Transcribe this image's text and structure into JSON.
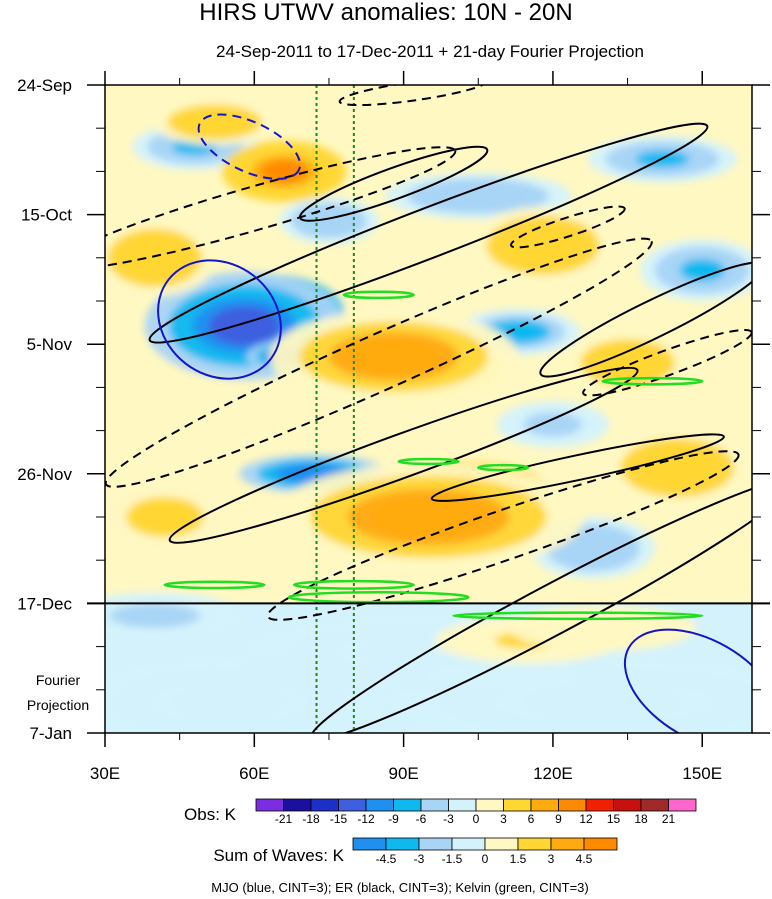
{
  "chart_data": {
    "type": "heatmap",
    "title": "HIRS UTWV anomalies: 10N - 20N",
    "subtitle": "24-Sep-2011 to 17-Dec-2011 + 21-day Fourier Projection",
    "x_ticks": [
      "30E",
      "60E",
      "90E",
      "120E",
      "150E"
    ],
    "x_tick_values": [
      30,
      60,
      90,
      120,
      150
    ],
    "xlim": [
      30,
      160
    ],
    "y_ticks": [
      "24-Sep",
      "15-Oct",
      "5-Nov",
      "26-Nov",
      "17-Dec",
      "7-Jan"
    ],
    "y_tick_days": [
      0,
      21,
      42,
      63,
      84,
      105
    ],
    "ylim_days": [
      0,
      105
    ],
    "projection_start_day": 84,
    "projection_label_1": "Fourier",
    "projection_label_2": "Projection",
    "reference_lines_lon": [
      72.5,
      80
    ],
    "obs_colorbar": {
      "title": "Obs: K",
      "levels": [
        "-21",
        "-18",
        "-15",
        "-12",
        "-9",
        "-6",
        "-3",
        "0",
        "3",
        "6",
        "9",
        "12",
        "15",
        "18",
        "21"
      ],
      "colors": [
        "#7b2de0",
        "#1a0f9e",
        "#1e2fc8",
        "#3e5fe0",
        "#1f8ff0",
        "#10b8f0",
        "#a8d4f5",
        "#d4f2fc",
        "#fff8c2",
        "#ffd633",
        "#ffaa10",
        "#ff8a00",
        "#f02000",
        "#c81010",
        "#a02a2a",
        "#ff66cc"
      ]
    },
    "waves_colorbar": {
      "title": "Sum of Waves: K",
      "levels": [
        "-4.5",
        "-3",
        "-1.5",
        "0",
        "1.5",
        "3",
        "4.5"
      ],
      "colors": [
        "#1f8ff0",
        "#10b8f0",
        "#a8d4f5",
        "#d4f2fc",
        "#fff8c2",
        "#ffd633",
        "#ffaa10",
        "#ff8a00"
      ]
    },
    "footnote": "MJO (blue, CINT=3); ER (black, CINT=3); Kelvin (green, CINT=3)",
    "field_patches": [
      {
        "lon": 63,
        "day": 37,
        "rlon": 12,
        "rday": 5,
        "val": -18
      },
      {
        "lon": 58,
        "day": 39,
        "rlon": 16,
        "rday": 7,
        "val": -13
      },
      {
        "lon": 66,
        "day": 44,
        "rlon": 6,
        "rday": 2,
        "val": -15
      },
      {
        "lon": 72,
        "day": 63,
        "rlon": 12,
        "rday": 2.5,
        "val": -12
      },
      {
        "lon": 48,
        "day": 10,
        "rlon": 10,
        "rday": 3,
        "val": -7
      },
      {
        "lon": 75,
        "day": 22,
        "rlon": 8,
        "rday": 3,
        "val": -6
      },
      {
        "lon": 105,
        "day": 18,
        "rlon": 15,
        "rday": 3,
        "val": -6
      },
      {
        "lon": 142,
        "day": 12,
        "rlon": 12,
        "rday": 3,
        "val": -7
      },
      {
        "lon": 113,
        "day": 40,
        "rlon": 10,
        "rday": 3,
        "val": -8
      },
      {
        "lon": 150,
        "day": 30,
        "rlon": 10,
        "rday": 4,
        "val": -7
      },
      {
        "lon": 128,
        "day": 75,
        "rlon": 10,
        "rday": 4,
        "val": -6
      },
      {
        "lon": 120,
        "day": 55,
        "rlon": 9,
        "rday": 3,
        "val": -5
      },
      {
        "lon": 40,
        "day": 86,
        "rlon": 14,
        "rday": 3,
        "val": -4
      },
      {
        "lon": 95,
        "day": 92,
        "rlon": 30,
        "rday": 5,
        "val": -2
      },
      {
        "lon": 130,
        "day": 100,
        "rlon": 35,
        "rday": 6,
        "val": -2
      },
      {
        "lon": 55,
        "day": 100,
        "rlon": 25,
        "rday": 6,
        "val": -2
      },
      {
        "lon": 66,
        "day": 14,
        "rlon": 10,
        "rday": 4,
        "val": 9
      },
      {
        "lon": 52,
        "day": 6,
        "rlon": 10,
        "rday": 3,
        "val": 5
      },
      {
        "lon": 92,
        "day": 46,
        "rlon": 14,
        "rday": 4,
        "val": 13
      },
      {
        "lon": 88,
        "day": 44,
        "rlon": 20,
        "rday": 6,
        "val": 8
      },
      {
        "lon": 102,
        "day": 66,
        "rlon": 14,
        "rday": 4,
        "val": 14
      },
      {
        "lon": 95,
        "day": 70,
        "rlon": 25,
        "rday": 7,
        "val": 8
      },
      {
        "lon": 118,
        "day": 26,
        "rlon": 12,
        "rday": 5,
        "val": 5
      },
      {
        "lon": 40,
        "day": 28,
        "rlon": 10,
        "rday": 5,
        "val": 5
      },
      {
        "lon": 135,
        "day": 45,
        "rlon": 10,
        "rday": 4,
        "val": 5
      },
      {
        "lon": 145,
        "day": 62,
        "rlon": 12,
        "rday": 5,
        "val": 5
      },
      {
        "lon": 42,
        "day": 70,
        "rlon": 12,
        "rday": 5,
        "val": 4
      },
      {
        "lon": 115,
        "day": 90,
        "rlon": 15,
        "rday": 3,
        "val": 3
      },
      {
        "lon": 130,
        "day": 88,
        "rlon": 15,
        "rday": 3,
        "val": 2
      }
    ],
    "mjo_contours": [
      {
        "lon": 59,
        "day": 10,
        "rlon": 11,
        "rday": 4,
        "angle": 25,
        "dashed": true
      },
      {
        "lon": 53,
        "day": 38,
        "rlon": 13,
        "rday": 9,
        "angle": 38,
        "dashed": false
      },
      {
        "lon": 150,
        "day": 98,
        "rlon": 17,
        "rday": 8,
        "angle": 30,
        "dashed": false
      }
    ],
    "er_contours": [
      {
        "lon": 95,
        "day": 24,
        "rlon": 60,
        "rday": 4,
        "angle": -21,
        "dashed": false
      },
      {
        "lon": 60,
        "day": 20,
        "rlon": 42,
        "rday": 3.5,
        "angle": -16,
        "dashed": true
      },
      {
        "lon": 88,
        "day": 16,
        "rlon": 20,
        "rday": 2.5,
        "angle": -20,
        "dashed": false
      },
      {
        "lon": 92,
        "day": 1,
        "rlon": 15,
        "rday": 1.5,
        "angle": -8,
        "dashed": true
      },
      {
        "lon": 85,
        "day": 45,
        "rlon": 60,
        "rday": 4.5,
        "angle": -24,
        "dashed": true
      },
      {
        "lon": 123,
        "day": 23,
        "rlon": 12,
        "rday": 1.5,
        "angle": -18,
        "dashed": true
      },
      {
        "lon": 140,
        "day": 38,
        "rlon": 25,
        "rday": 3,
        "angle": -26,
        "dashed": false
      },
      {
        "lon": 90,
        "day": 60,
        "rlon": 50,
        "rday": 3.5,
        "angle": -20,
        "dashed": false
      },
      {
        "lon": 110,
        "day": 73,
        "rlon": 50,
        "rday": 4,
        "angle": -19,
        "dashed": true
      },
      {
        "lon": 120,
        "day": 85,
        "rlon": 55,
        "rday": 4,
        "angle": -28,
        "dashed": false
      },
      {
        "lon": 125,
        "day": 62,
        "rlon": 30,
        "rday": 2,
        "angle": -12,
        "dashed": false
      },
      {
        "lon": 143,
        "day": 45,
        "rlon": 18,
        "rday": 2,
        "angle": -20,
        "dashed": true
      }
    ],
    "kelvin_contours": [
      {
        "lon": 85,
        "day": 34,
        "rlon": 7,
        "rday": 0.5,
        "angle": 0
      },
      {
        "lon": 95,
        "day": 61,
        "rlon": 6,
        "rday": 0.4,
        "angle": 0
      },
      {
        "lon": 110,
        "day": 62,
        "rlon": 5,
        "rday": 0.4,
        "angle": 0
      },
      {
        "lon": 140,
        "day": 48,
        "rlon": 10,
        "rday": 0.5,
        "angle": 0
      },
      {
        "lon": 52,
        "day": 81,
        "rlon": 10,
        "rday": 0.5,
        "angle": 0
      },
      {
        "lon": 80,
        "day": 81,
        "rlon": 12,
        "rday": 0.6,
        "angle": 0
      },
      {
        "lon": 85,
        "day": 83,
        "rlon": 18,
        "rday": 0.8,
        "angle": 0
      },
      {
        "lon": 125,
        "day": 86,
        "rlon": 25,
        "rday": 0.5,
        "angle": 0
      }
    ]
  }
}
